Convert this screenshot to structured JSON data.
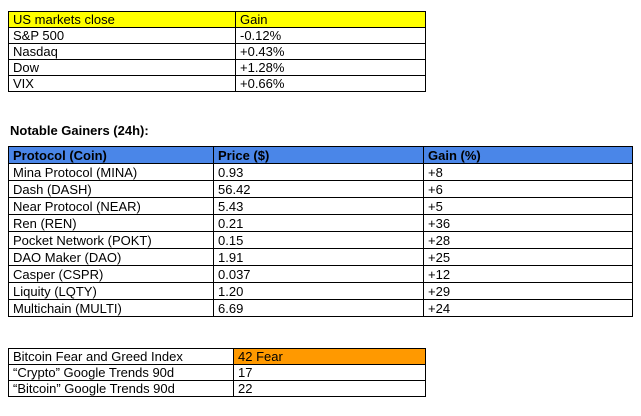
{
  "colors": {
    "markets_header_bg": "#ffff00",
    "gainers_header_bg": "#4a86e8",
    "fear_greed_value_bg": "#ff9900",
    "border": "#000000",
    "text": "#000000",
    "page_bg": "#ffffff"
  },
  "us_markets": {
    "header": {
      "label": "US markets close",
      "gain": "Gain"
    },
    "rows": [
      {
        "label": "S&P 500",
        "gain": "-0.12%"
      },
      {
        "label": "Nasdaq",
        "gain": "+0.43%"
      },
      {
        "label": "Dow",
        "gain": "+1.28%"
      },
      {
        "label": "VIX",
        "gain": "+0.66%"
      }
    ]
  },
  "gainers": {
    "title": "Notable Gainers (24h):",
    "header": {
      "protocol": "Protocol (Coin)",
      "price": "Price ($)",
      "gain": "Gain (%)"
    },
    "rows": [
      {
        "protocol": "Mina Protocol (MINA)",
        "price": "0.93",
        "gain": "+8"
      },
      {
        "protocol": "Dash (DASH)",
        "price": "56.42",
        "gain": "+6"
      },
      {
        "protocol": "Near Protocol (NEAR)",
        "price": "5.43",
        "gain": "+5"
      },
      {
        "protocol": "Ren (REN)",
        "price": "0.21",
        "gain": "+36"
      },
      {
        "protocol": "Pocket Network (POKT)",
        "price": "0.15",
        "gain": "+28"
      },
      {
        "protocol": "DAO Maker (DAO)",
        "price": "1.91",
        "gain": "+25"
      },
      {
        "protocol": "Casper (CSPR)",
        "price": "0.037",
        "gain": "+12"
      },
      {
        "protocol": "Liquity (LQTY)",
        "price": "1.20",
        "gain": "+29"
      },
      {
        "protocol": "Multichain (MULTI)",
        "price": "6.69",
        "gain": "+24"
      }
    ]
  },
  "sentiment": {
    "rows": [
      {
        "label": "Bitcoin Fear and Greed Index",
        "value": "42 Fear"
      },
      {
        "label": "“Crypto” Google Trends 90d",
        "value": "17"
      },
      {
        "label": "“Bitcoin” Google Trends 90d",
        "value": "22"
      }
    ]
  }
}
